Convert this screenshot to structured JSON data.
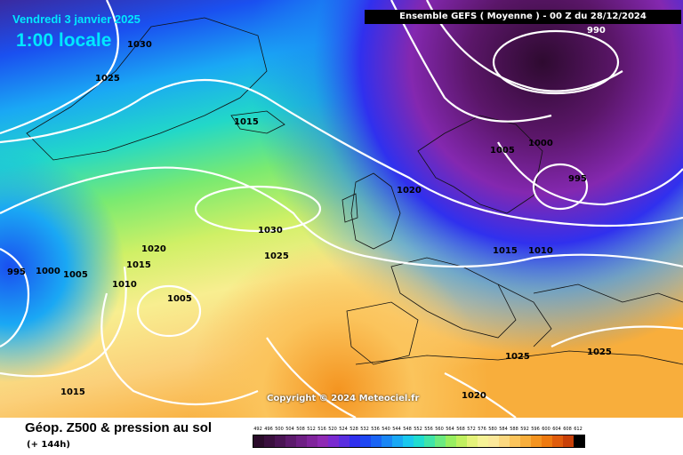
{
  "header": {
    "date": "Vendredi 3 janvier 2025",
    "time": "1:00 locale",
    "model_info": "Ensemble GEFS  ( Moyenne )  -  00 Z du 28/12/2024"
  },
  "copyright": "Copyright © 2024 Meteociel.fr",
  "footer": {
    "title": "Géop. Z500 & pression au sol",
    "lead_time": "(+ 144h)"
  },
  "isobar_labels": [
    {
      "text": "1030"
    },
    {
      "text": "1025"
    },
    {
      "text": "1015"
    },
    {
      "text": "990"
    },
    {
      "text": "1000"
    },
    {
      "text": "1005"
    },
    {
      "text": "995"
    },
    {
      "text": "1020"
    },
    {
      "text": "1030"
    },
    {
      "text": "1025"
    },
    {
      "text": "1020"
    },
    {
      "text": "1015"
    },
    {
      "text": "1010"
    },
    {
      "text": "1005"
    },
    {
      "text": "995"
    },
    {
      "text": "1000"
    },
    {
      "text": "1005"
    },
    {
      "text": "1015"
    },
    {
      "text": "1010"
    },
    {
      "text": "1025"
    },
    {
      "text": "1025"
    },
    {
      "text": "1015"
    },
    {
      "text": "1020"
    }
  ],
  "legend": {
    "labels": [
      "492",
      "496",
      "500",
      "504",
      "508",
      "512",
      "516",
      "520",
      "524",
      "528",
      "532",
      "536",
      "540",
      "544",
      "548",
      "552",
      "556",
      "560",
      "564",
      "568",
      "572",
      "576",
      "580",
      "584",
      "588",
      "592",
      "596",
      "600",
      "604",
      "608",
      "612"
    ],
    "colors": [
      "#2a0b2a",
      "#3a0f3e",
      "#4a1454",
      "#5c1a6c",
      "#6e1f84",
      "#80249c",
      "#8f2ab4",
      "#7a2ad0",
      "#5a2ee0",
      "#3030ee",
      "#1e46f2",
      "#1a64f4",
      "#1a86f4",
      "#1aa8f4",
      "#1ac8ee",
      "#20dcd0",
      "#40e4a8",
      "#6cea80",
      "#98ee60",
      "#c0f060",
      "#e4f27a",
      "#f6f296",
      "#fbe89a",
      "#fbd880",
      "#fbc45c",
      "#f8ae3c",
      "#f49420",
      "#ee7a10",
      "#e05c0c",
      "#c84008",
      "#000000"
    ]
  }
}
